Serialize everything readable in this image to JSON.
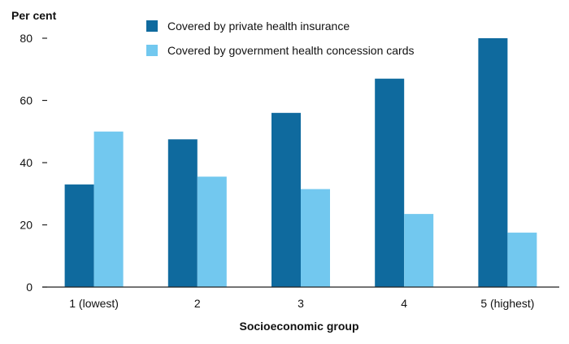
{
  "chart_data": {
    "type": "bar",
    "ylabel": "Per cent",
    "xlabel": "Socioeconomic group",
    "categories": [
      "1 (lowest)",
      "2",
      "3",
      "4",
      "5 (highest)"
    ],
    "ylim": [
      0,
      80
    ],
    "yticks": [
      0,
      20,
      40,
      60,
      80
    ],
    "grid": false,
    "legend_position": "top",
    "series": [
      {
        "name": "Covered by private health insurance",
        "color": "#0f6a9e",
        "values": [
          33,
          47.5,
          56,
          67,
          80
        ]
      },
      {
        "name": "Covered by government health concession cards",
        "color": "#72c8ef",
        "values": [
          50,
          35.5,
          31.5,
          23.5,
          17.5
        ]
      }
    ]
  }
}
